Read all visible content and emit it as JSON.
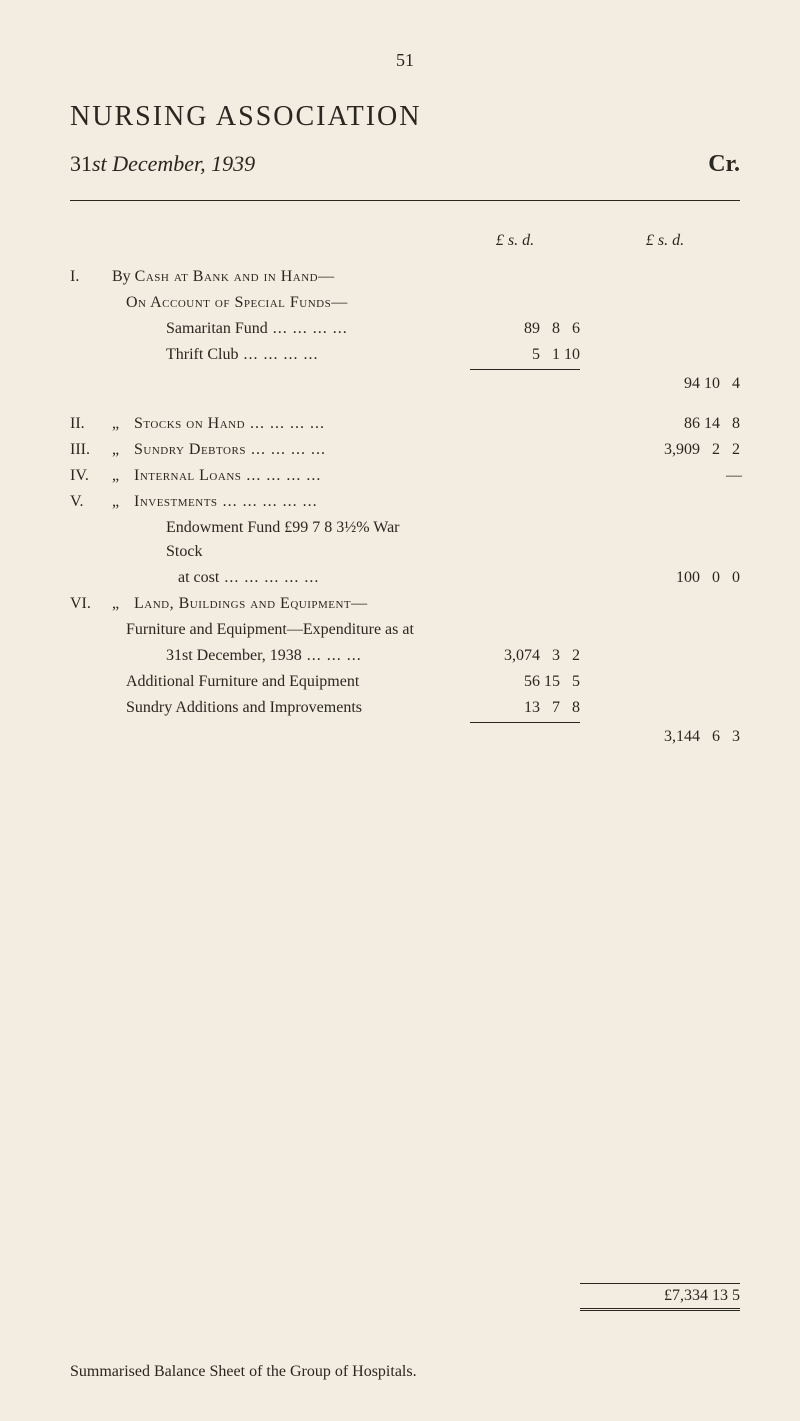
{
  "page_number": "51",
  "heading": "NURSING ASSOCIATION",
  "subtitle_prefix": "31",
  "subtitle_ordinal": "st",
  "subtitle_rest": " December, 1939",
  "cr": "Cr.",
  "col_header_left": "£   s.  d.",
  "col_header_right": "£   s.  d.",
  "sections": {
    "i": {
      "roman": "I.",
      "prefix": "By ",
      "label": "Cash at Bank and in Hand—",
      "sub_heading": "On Account of Special Funds—",
      "items": [
        {
          "label": "Samaritan Fund",
          "amt_left": "89   8   6"
        },
        {
          "label": "Thrift Club",
          "amt_left": "5   1 10"
        }
      ],
      "total_right": "94 10   4"
    },
    "ii": {
      "roman": "II.",
      "ditto": "„",
      "label": "Stocks on Hand",
      "amt_right": "86 14   8"
    },
    "iii": {
      "roman": "III.",
      "ditto": "„",
      "label": "Sundry Debtors",
      "amt_right": "3,909   2   2"
    },
    "iv": {
      "roman": "IV.",
      "ditto": "„",
      "label": "Internal Loans",
      "amt_right": "—"
    },
    "v": {
      "roman": "V.",
      "ditto": "„",
      "label": "Investments",
      "sub1": "Endowment Fund £99 7 8 3½% War Stock",
      "sub2": "at cost",
      "amt_right": "100   0   0"
    },
    "vi": {
      "roman": "VI.",
      "ditto": "„",
      "label": "Land, Buildings and Equipment—",
      "sub1": "Furniture and Equipment—Expenditure as at",
      "sub1b": "31st December, 1938",
      "sub1_amt": "3,074   3   2",
      "sub2": "Additional Furniture and Equipment",
      "sub2_amt": "56 15   5",
      "sub3": "Sundry Additions and Improvements",
      "sub3_amt": "13   7   8",
      "total_right": "3,144   6   3"
    }
  },
  "grand_total": "£7,334 13   5",
  "footer": "Summarised Balance Sheet of the Group of Hospitals."
}
